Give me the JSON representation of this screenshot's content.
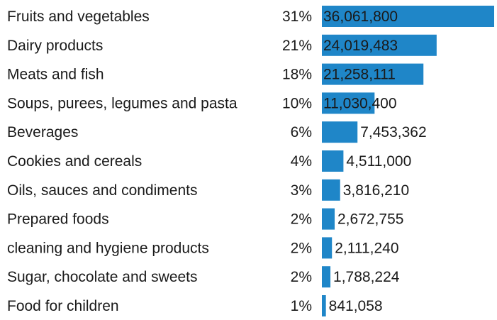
{
  "chart_data": {
    "type": "bar",
    "orientation": "horizontal",
    "title": "",
    "xlabel": "",
    "ylabel": "",
    "bar_color": "#1f86c8",
    "categories": [
      "Fruits and vegetables",
      "Dairy products",
      "Meats and fish",
      "Soups, purees, legumes and pasta",
      "Beverages",
      "Cookies and cereals",
      "Oils, sauces and condiments",
      "Prepared foods",
      "cleaning and hygiene products",
      "Sugar, chocolate and sweets",
      "Food for children"
    ],
    "percent_labels": [
      "31%",
      "21%",
      "18%",
      "10%",
      "6%",
      "4%",
      "3%",
      "2%",
      "2%",
      "2%",
      "1%"
    ],
    "value_labels": [
      "36,061,800",
      "24,019,483",
      "21,258,111",
      "11,030,400",
      "7,453,362",
      "4,511,000",
      "3,816,210",
      "2,672,755",
      "2,111,240",
      "1,788,224",
      "841,058"
    ],
    "values": [
      36061800,
      24019483,
      21258111,
      11030400,
      7453362,
      4511000,
      3816210,
      2672755,
      2111240,
      1788224,
      841058
    ],
    "grid": false,
    "legend": "none"
  }
}
